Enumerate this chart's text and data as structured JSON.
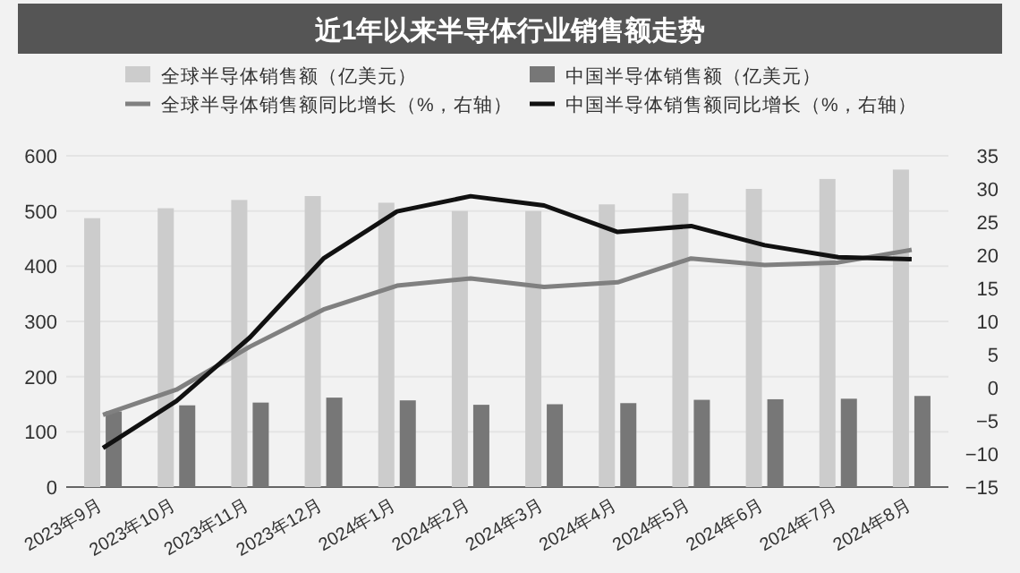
{
  "chart_data": {
    "type": "bar",
    "title": "近1年以来半导体行业销售额走势",
    "categories": [
      "2023年9月",
      "2023年10月",
      "2023年11月",
      "2023年12月",
      "2024年1月",
      "2024年2月",
      "2024年3月",
      "2024年4月",
      "2024年5月",
      "2024年6月",
      "2024年7月",
      "2024年8月"
    ],
    "series": [
      {
        "name": "全球半导体销售额（亿美元）",
        "color": "#cccccc",
        "values": [
          487,
          505,
          520,
          527,
          515,
          500,
          500,
          512,
          532,
          540,
          558,
          575
        ]
      },
      {
        "name": "中国半导体销售额（亿美元）",
        "color": "#777777",
        "values": [
          137,
          148,
          153,
          162,
          157,
          149,
          150,
          152,
          158,
          159,
          160,
          165
        ]
      },
      {
        "name": "全球半导体销售额同比增长（%，右轴）",
        "color": "#808080",
        "type": "line",
        "axis": "y2",
        "values": [
          -4.1,
          -0.3,
          6.2,
          11.8,
          15.4,
          16.5,
          15.2,
          15.9,
          19.5,
          18.5,
          18.9,
          20.8
        ]
      },
      {
        "name": "中国半导体销售额同比增长（%，右轴）",
        "color": "#111111",
        "type": "line",
        "axis": "y2",
        "values": [
          -9.1,
          -2.0,
          7.6,
          19.5,
          26.6,
          28.9,
          27.5,
          23.5,
          24.4,
          21.5,
          19.7,
          19.4
        ]
      }
    ],
    "ylim": [
      0,
      600
    ],
    "yticks": [
      0,
      100,
      200,
      300,
      400,
      500,
      600
    ],
    "y2lim": [
      -15,
      35
    ],
    "y2ticks": [
      -15,
      -10,
      -5,
      0,
      5,
      10,
      15,
      20,
      25,
      30,
      35
    ],
    "grid": "y",
    "legend": "top"
  }
}
